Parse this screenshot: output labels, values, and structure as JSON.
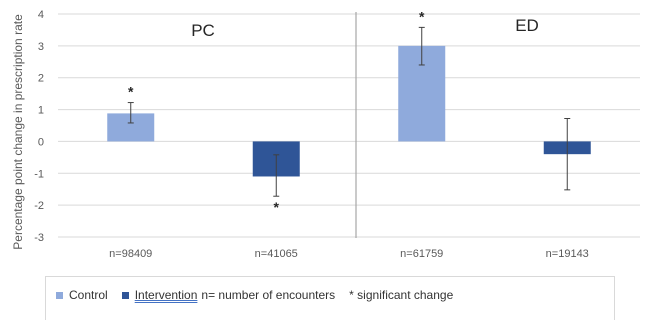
{
  "chart_data": {
    "type": "bar",
    "ylabel": "Percentage point change in prescription rate",
    "ylim": [
      -3,
      4
    ],
    "yticks": [
      "4",
      "3",
      "2",
      "1",
      "0",
      "-1",
      "-2",
      "-3"
    ],
    "grid": true,
    "panels": [
      {
        "label": "PC",
        "categories": [
          "n=98409",
          "n=41065"
        ]
      },
      {
        "label": "ED",
        "categories": [
          "n=61759",
          "n=19143"
        ]
      }
    ],
    "categories": [
      "n=98409",
      "n=41065",
      "n=61759",
      "n=19143"
    ],
    "series": [
      {
        "name": "Control",
        "color": "#8faadc",
        "points": [
          {
            "category": "n=98409",
            "value": 0.88,
            "err_low": 0.58,
            "err_high": 1.22,
            "significant": true
          },
          {
            "category": "n=61759",
            "value": 3.0,
            "err_low": 2.4,
            "err_high": 3.58,
            "significant": true
          }
        ]
      },
      {
        "name": "Intervention",
        "color": "#2f5597",
        "points": [
          {
            "category": "n=41065",
            "value": -1.1,
            "err_low": -1.72,
            "err_high": -0.42,
            "significant": true
          },
          {
            "category": "n=19143",
            "value": -0.4,
            "err_low": -1.52,
            "err_high": 0.72,
            "significant": false
          }
        ]
      }
    ],
    "significance_marker": "*"
  },
  "legend": {
    "control_label": "Control",
    "intervention_label": "Intervention",
    "note": "n= number of encounters",
    "significance_note": "* significant change"
  }
}
